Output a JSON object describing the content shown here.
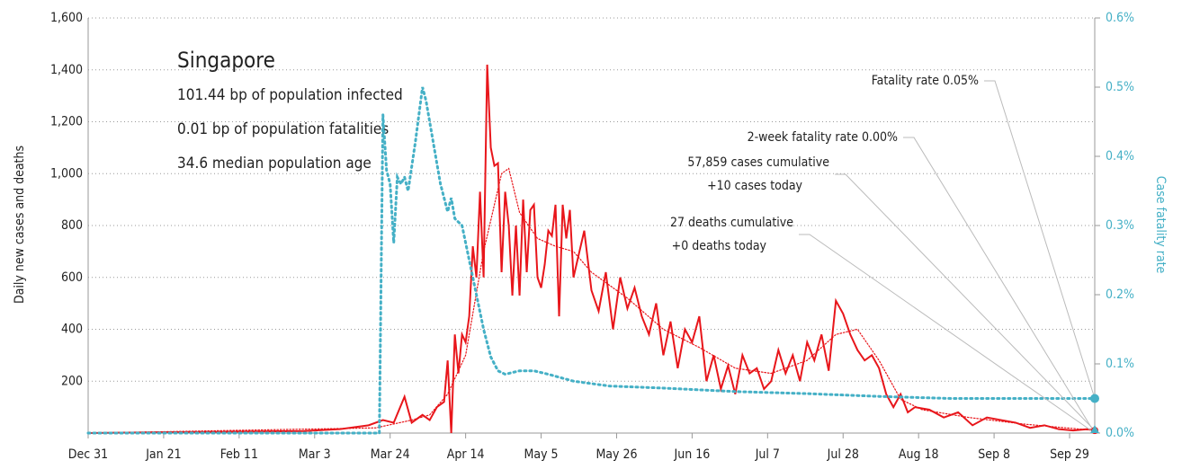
{
  "chart_data": {
    "type": "line",
    "ylabel": "Daily new cases and deaths",
    "y2label": "Case fatality rate",
    "info": {
      "title": "Singapore",
      "lines": [
        "101.44 bp of population infected",
        "0.01 bp of population fatalities",
        "34.6 median population age"
      ]
    },
    "annotations": [
      {
        "lines": [
          "Fatality rate 0.05%"
        ]
      },
      {
        "lines": [
          "2-week fatality rate 0.00%"
        ]
      },
      {
        "lines": [
          "57,859 cases cumulative",
          "+10 cases today"
        ]
      },
      {
        "lines": [
          "27 deaths cumulative",
          "+0 deaths today"
        ]
      }
    ],
    "xlim": [
      0,
      280
    ],
    "xticks": [
      {
        "value": 0,
        "label": "Dec 31"
      },
      {
        "value": 21,
        "label": "Jan 21"
      },
      {
        "value": 42,
        "label": "Feb 11"
      },
      {
        "value": 63,
        "label": "Mar 3"
      },
      {
        "value": 84,
        "label": "Mar 24"
      },
      {
        "value": 105,
        "label": "Apr 14"
      },
      {
        "value": 126,
        "label": "May 5"
      },
      {
        "value": 147,
        "label": "May 26"
      },
      {
        "value": 168,
        "label": "Jun 16"
      },
      {
        "value": 189,
        "label": "Jul 7"
      },
      {
        "value": 210,
        "label": "Jul 28"
      },
      {
        "value": 231,
        "label": "Aug 18"
      },
      {
        "value": 252,
        "label": "Sep 8"
      },
      {
        "value": 273,
        "label": "Sep 29"
      }
    ],
    "ylim": [
      0,
      1600
    ],
    "yticks": [
      200,
      400,
      600,
      800,
      {
        "value": 1000,
        "label": "1,000"
      },
      {
        "value": 1200,
        "label": "1,200"
      },
      {
        "value": 1400,
        "label": "1,400"
      },
      {
        "value": 1600,
        "label": "1,600"
      }
    ],
    "y2lim": [
      0,
      0.6
    ],
    "y2ticks": [
      {
        "value": 0,
        "label": "0.0%"
      },
      {
        "value": 0.1,
        "label": "0.1%"
      },
      {
        "value": 0.2,
        "label": "0.2%"
      },
      {
        "value": 0.3,
        "label": "0.3%"
      },
      {
        "value": 0.4,
        "label": "0.4%"
      },
      {
        "value": 0.5,
        "label": "0.5%"
      },
      {
        "value": 0.6,
        "label": "0.6%"
      }
    ],
    "grid": true,
    "two_week_fatality_rate": 0,
    "series": [
      {
        "color": "#e8161b",
        "style": "solid",
        "x": [
          0,
          20,
          40,
          60,
          70,
          78,
          82,
          85,
          88,
          90,
          93,
          95,
          97,
          99,
          100,
          101,
          102,
          103,
          104,
          105,
          106,
          107,
          108,
          109,
          110,
          111,
          112,
          113,
          114,
          115,
          116,
          117,
          118,
          119,
          120,
          121,
          122,
          123,
          124,
          125,
          126,
          127,
          128,
          129,
          130,
          131,
          132,
          133,
          134,
          135,
          138,
          140,
          142,
          144,
          146,
          148,
          150,
          152,
          154,
          156,
          158,
          160,
          162,
          164,
          166,
          168,
          170,
          172,
          174,
          176,
          178,
          180,
          182,
          184,
          186,
          188,
          190,
          192,
          194,
          196,
          198,
          200,
          202,
          204,
          206,
          208,
          210,
          212,
          214,
          216,
          218,
          220,
          222,
          224,
          226,
          228,
          230,
          234,
          238,
          242,
          246,
          250,
          254,
          258,
          262,
          266,
          270,
          274,
          278,
          280
        ],
        "values": [
          0,
          3,
          5,
          8,
          15,
          30,
          50,
          40,
          140,
          40,
          70,
          50,
          100,
          120,
          280,
          0,
          380,
          230,
          380,
          350,
          450,
          720,
          600,
          930,
          600,
          1420,
          1100,
          1030,
          1040,
          620,
          930,
          800,
          530,
          800,
          530,
          900,
          620,
          860,
          880,
          600,
          560,
          650,
          780,
          760,
          880,
          450,
          880,
          750,
          860,
          600,
          780,
          550,
          470,
          620,
          400,
          600,
          480,
          560,
          450,
          380,
          500,
          300,
          430,
          250,
          400,
          350,
          450,
          200,
          300,
          170,
          260,
          150,
          300,
          230,
          250,
          170,
          200,
          320,
          230,
          300,
          200,
          350,
          280,
          380,
          240,
          510,
          460,
          380,
          320,
          280,
          300,
          250,
          150,
          100,
          150,
          80,
          100,
          90,
          60,
          80,
          30,
          60,
          50,
          40,
          20,
          30,
          15,
          10,
          15,
          10
        ]
      },
      {
        "color": "#e8161b",
        "style": "dotted",
        "x": [
          0,
          80,
          90,
          95,
          100,
          105,
          110,
          115,
          117,
          120,
          125,
          130,
          135,
          140,
          150,
          160,
          170,
          180,
          190,
          200,
          208,
          214,
          220,
          226,
          232,
          245,
          260,
          280
        ],
        "values": [
          0,
          20,
          50,
          70,
          150,
          300,
          700,
          1000,
          1020,
          850,
          750,
          720,
          700,
          620,
          520,
          400,
          330,
          250,
          230,
          280,
          380,
          400,
          280,
          130,
          90,
          60,
          35,
          10
        ]
      },
      {
        "color": "#45b0c6",
        "style": "dotted",
        "axis": "y2",
        "x": [
          0,
          81,
          82,
          83,
          84,
          85,
          86,
          87,
          88,
          89,
          91,
          93,
          94,
          96,
          98,
          100,
          101,
          102,
          104,
          106,
          108,
          110,
          112,
          114,
          116,
          120,
          124,
          128,
          135,
          145,
          160,
          180,
          200,
          220,
          240,
          280
        ],
        "values": [
          0,
          0,
          0.46,
          0.38,
          0.36,
          0.275,
          0.37,
          0.36,
          0.37,
          0.35,
          0.42,
          0.5,
          0.48,
          0.42,
          0.36,
          0.32,
          0.34,
          0.31,
          0.3,
          0.25,
          0.2,
          0.15,
          0.11,
          0.09,
          0.085,
          0.09,
          0.09,
          0.085,
          0.075,
          0.068,
          0.065,
          0.06,
          0.057,
          0.053,
          0.05,
          0.05
        ]
      }
    ]
  }
}
